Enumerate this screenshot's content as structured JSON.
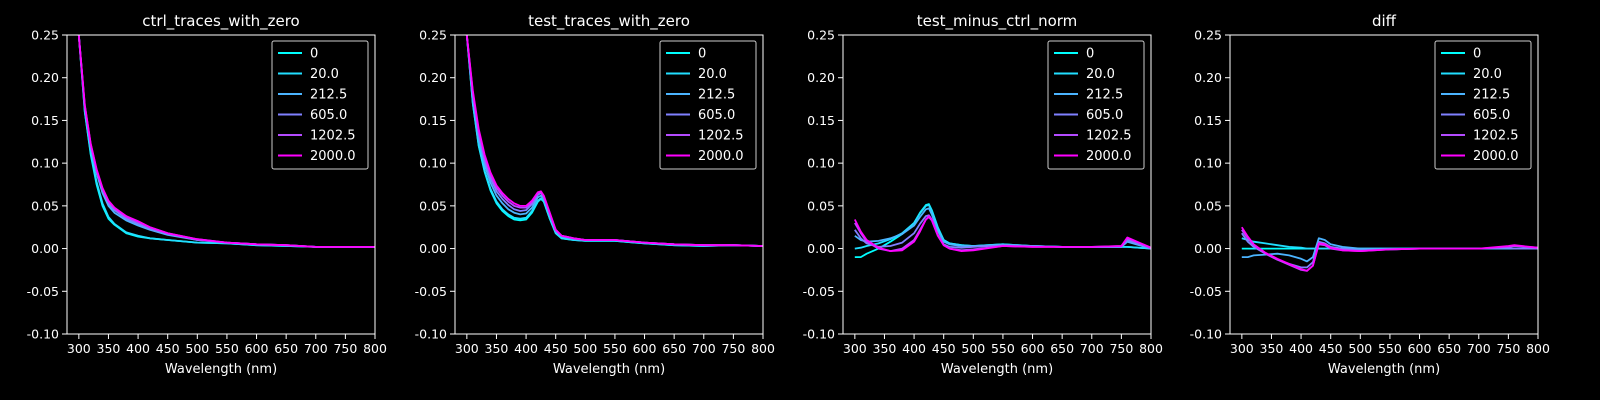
{
  "figure": {
    "background": "#000000",
    "foreground": "#ffffff"
  },
  "series_legend": [
    "0",
    "20.0",
    "212.5",
    "605.0",
    "1202.5",
    "2000.0"
  ],
  "series_colors": [
    "#00ffff",
    "#21deff",
    "#4bb4ff",
    "#7f80ff",
    "#b44bff",
    "#ff00ff"
  ],
  "chart_data": [
    {
      "type": "line",
      "title": "ctrl_traces_with_zero",
      "xlabel": "Wavelength (nm)",
      "ylabel": "",
      "xlim": [
        280,
        800
      ],
      "ylim": [
        -0.1,
        0.25
      ],
      "xticks": [
        300,
        350,
        400,
        450,
        500,
        550,
        600,
        650,
        700,
        750,
        800
      ],
      "yticks": [
        "-0.10",
        "-0.05",
        "0.00",
        "0.05",
        "0.10",
        "0.15",
        "0.20",
        "0.25"
      ],
      "grid": false,
      "legend_position": "top-right",
      "x": [
        300,
        310,
        320,
        330,
        340,
        350,
        360,
        380,
        400,
        420,
        450,
        500,
        550,
        600,
        650,
        700,
        750,
        800
      ],
      "series": [
        {
          "name": "0",
          "values": [
            0.25,
            0.16,
            0.11,
            0.075,
            0.05,
            0.035,
            0.028,
            0.018,
            0.014,
            0.012,
            0.01,
            0.007,
            0.006,
            0.004,
            0.003,
            0.002,
            0.002,
            0.002
          ]
        },
        {
          "name": "20.0",
          "values": [
            0.25,
            0.16,
            0.112,
            0.078,
            0.053,
            0.037,
            0.029,
            0.019,
            0.015,
            0.012,
            0.01,
            0.007,
            0.006,
            0.004,
            0.003,
            0.002,
            0.002,
            0.002
          ]
        },
        {
          "name": "212.5",
          "values": [
            0.25,
            0.165,
            0.118,
            0.088,
            0.065,
            0.05,
            0.042,
            0.033,
            0.027,
            0.022,
            0.016,
            0.01,
            0.007,
            0.005,
            0.004,
            0.002,
            0.002,
            0.002
          ]
        },
        {
          "name": "605.0",
          "values": [
            0.25,
            0.165,
            0.12,
            0.09,
            0.068,
            0.053,
            0.045,
            0.035,
            0.029,
            0.023,
            0.017,
            0.01,
            0.007,
            0.005,
            0.004,
            0.002,
            0.002,
            0.002
          ]
        },
        {
          "name": "1202.5",
          "values": [
            0.25,
            0.168,
            0.122,
            0.092,
            0.07,
            0.055,
            0.047,
            0.037,
            0.031,
            0.025,
            0.018,
            0.011,
            0.007,
            0.005,
            0.004,
            0.002,
            0.002,
            0.002
          ]
        },
        {
          "name": "2000.0",
          "values": [
            0.25,
            0.168,
            0.123,
            0.093,
            0.071,
            0.056,
            0.048,
            0.038,
            0.032,
            0.025,
            0.018,
            0.011,
            0.007,
            0.005,
            0.004,
            0.002,
            0.002,
            0.002
          ]
        }
      ]
    },
    {
      "type": "line",
      "title": "test_traces_with_zero",
      "xlabel": "Wavelength (nm)",
      "ylabel": "",
      "xlim": [
        280,
        800
      ],
      "ylim": [
        -0.1,
        0.25
      ],
      "xticks": [
        300,
        350,
        400,
        450,
        500,
        550,
        600,
        650,
        700,
        750,
        800
      ],
      "yticks": [
        "-0.10",
        "-0.05",
        "0.00",
        "0.05",
        "0.10",
        "0.15",
        "0.20",
        "0.25"
      ],
      "grid": false,
      "legend_position": "top-right",
      "x": [
        300,
        310,
        320,
        330,
        340,
        350,
        360,
        370,
        380,
        390,
        400,
        410,
        420,
        425,
        430,
        440,
        450,
        460,
        480,
        500,
        550,
        600,
        650,
        700,
        750,
        800
      ],
      "series": [
        {
          "name": "0",
          "values": [
            0.25,
            0.17,
            0.12,
            0.09,
            0.068,
            0.053,
            0.044,
            0.038,
            0.034,
            0.033,
            0.034,
            0.042,
            0.055,
            0.058,
            0.055,
            0.035,
            0.018,
            0.012,
            0.01,
            0.009,
            0.009,
            0.006,
            0.004,
            0.003,
            0.004,
            0.003
          ]
        },
        {
          "name": "20.0",
          "values": [
            0.25,
            0.17,
            0.121,
            0.091,
            0.07,
            0.055,
            0.046,
            0.04,
            0.036,
            0.035,
            0.036,
            0.044,
            0.056,
            0.059,
            0.055,
            0.035,
            0.018,
            0.012,
            0.01,
            0.009,
            0.009,
            0.006,
            0.004,
            0.003,
            0.004,
            0.003
          ]
        },
        {
          "name": "212.5",
          "values": [
            0.25,
            0.175,
            0.128,
            0.098,
            0.077,
            0.062,
            0.053,
            0.046,
            0.042,
            0.04,
            0.041,
            0.048,
            0.06,
            0.062,
            0.058,
            0.038,
            0.02,
            0.014,
            0.011,
            0.01,
            0.01,
            0.007,
            0.005,
            0.004,
            0.004,
            0.003
          ]
        },
        {
          "name": "605.0",
          "values": [
            0.25,
            0.18,
            0.133,
            0.103,
            0.082,
            0.067,
            0.058,
            0.051,
            0.046,
            0.044,
            0.045,
            0.052,
            0.063,
            0.065,
            0.06,
            0.04,
            0.021,
            0.015,
            0.012,
            0.01,
            0.01,
            0.007,
            0.005,
            0.004,
            0.004,
            0.003
          ]
        },
        {
          "name": "1202.5",
          "values": [
            0.25,
            0.183,
            0.137,
            0.107,
            0.086,
            0.071,
            0.062,
            0.055,
            0.05,
            0.048,
            0.048,
            0.054,
            0.065,
            0.066,
            0.061,
            0.041,
            0.022,
            0.015,
            0.012,
            0.01,
            0.01,
            0.007,
            0.005,
            0.004,
            0.004,
            0.003
          ]
        },
        {
          "name": "2000.0",
          "values": [
            0.25,
            0.185,
            0.14,
            0.11,
            0.089,
            0.074,
            0.065,
            0.058,
            0.053,
            0.05,
            0.05,
            0.056,
            0.066,
            0.067,
            0.062,
            0.042,
            0.022,
            0.015,
            0.012,
            0.01,
            0.01,
            0.007,
            0.005,
            0.004,
            0.004,
            0.003
          ]
        }
      ]
    },
    {
      "type": "line",
      "title": "test_minus_ctrl_norm",
      "xlabel": "Wavelength (nm)",
      "ylabel": "",
      "xlim": [
        280,
        800
      ],
      "ylim": [
        -0.1,
        0.25
      ],
      "xticks": [
        300,
        350,
        400,
        450,
        500,
        550,
        600,
        650,
        700,
        750,
        800
      ],
      "yticks": [
        "-0.10",
        "-0.05",
        "0.00",
        "0.05",
        "0.10",
        "0.15",
        "0.20",
        "0.25"
      ],
      "grid": false,
      "legend_position": "top-right",
      "x": [
        300,
        310,
        320,
        340,
        360,
        380,
        400,
        410,
        420,
        425,
        430,
        440,
        450,
        460,
        480,
        500,
        550,
        600,
        650,
        700,
        750,
        760,
        800
      ],
      "series": [
        {
          "name": "0",
          "values": [
            -0.01,
            -0.01,
            -0.006,
            0.0,
            0.008,
            0.017,
            0.03,
            0.042,
            0.051,
            0.052,
            0.045,
            0.025,
            0.01,
            0.006,
            0.004,
            0.003,
            0.005,
            0.003,
            0.002,
            0.002,
            0.002,
            0.002,
            0.0
          ]
        },
        {
          "name": "20.0",
          "values": [
            0.0,
            0.001,
            0.003,
            0.006,
            0.011,
            0.018,
            0.03,
            0.041,
            0.05,
            0.051,
            0.044,
            0.024,
            0.01,
            0.006,
            0.004,
            0.003,
            0.005,
            0.003,
            0.002,
            0.002,
            0.002,
            0.002,
            0.0
          ]
        },
        {
          "name": "212.5",
          "values": [
            0.015,
            0.01,
            0.008,
            0.009,
            0.012,
            0.017,
            0.027,
            0.037,
            0.046,
            0.047,
            0.04,
            0.021,
            0.008,
            0.005,
            0.003,
            0.003,
            0.004,
            0.003,
            0.002,
            0.002,
            0.002,
            0.008,
            0.0
          ]
        },
        {
          "name": "605.0",
          "values": [
            0.022,
            0.012,
            0.006,
            0.002,
            0.003,
            0.007,
            0.018,
            0.029,
            0.038,
            0.039,
            0.034,
            0.016,
            0.005,
            0.002,
            0.001,
            0.002,
            0.004,
            0.003,
            0.002,
            0.002,
            0.002,
            0.01,
            0.0
          ]
        },
        {
          "name": "1202.5",
          "values": [
            0.03,
            0.018,
            0.008,
            0.0,
            -0.003,
            0.0,
            0.01,
            0.022,
            0.034,
            0.037,
            0.033,
            0.015,
            0.004,
            0.0,
            -0.002,
            -0.001,
            0.003,
            0.002,
            0.002,
            0.002,
            0.003,
            0.012,
            0.001
          ]
        },
        {
          "name": "2000.0",
          "values": [
            0.034,
            0.02,
            0.01,
            0.001,
            -0.003,
            -0.002,
            0.008,
            0.02,
            0.034,
            0.038,
            0.034,
            0.016,
            0.004,
            0.0,
            -0.003,
            -0.002,
            0.003,
            0.002,
            0.002,
            0.002,
            0.003,
            0.013,
            0.001
          ]
        }
      ]
    },
    {
      "type": "line",
      "title": "diff",
      "xlabel": "Wavelength (nm)",
      "ylabel": "",
      "xlim": [
        280,
        800
      ],
      "ylim": [
        -0.1,
        0.25
      ],
      "xticks": [
        300,
        350,
        400,
        450,
        500,
        550,
        600,
        650,
        700,
        750,
        800
      ],
      "yticks": [
        "-0.10",
        "-0.05",
        "0.00",
        "0.05",
        "0.10",
        "0.15",
        "0.20",
        "0.25"
      ],
      "grid": false,
      "legend_position": "top-right",
      "x": [
        300,
        310,
        320,
        340,
        360,
        380,
        400,
        410,
        420,
        430,
        440,
        450,
        470,
        500,
        550,
        600,
        650,
        700,
        750,
        760,
        800
      ],
      "series": [
        {
          "name": "0",
          "values": [
            0.0,
            0.0,
            0.0,
            0.0,
            0.0,
            0.0,
            0.0,
            0.0,
            0.0,
            0.0,
            0.0,
            0.0,
            0.0,
            0.0,
            0.0,
            0.0,
            0.0,
            0.0,
            0.0,
            0.0,
            0.0
          ]
        },
        {
          "name": "20.0",
          "values": [
            0.012,
            0.01,
            0.008,
            0.006,
            0.004,
            0.002,
            0.001,
            0.0,
            0.0,
            0.0,
            0.0,
            0.0,
            0.0,
            0.0,
            0.0,
            0.0,
            0.0,
            0.0,
            0.0,
            0.0,
            0.0
          ]
        },
        {
          "name": "212.5",
          "values": [
            -0.01,
            -0.01,
            -0.008,
            -0.007,
            -0.006,
            -0.008,
            -0.012,
            -0.015,
            -0.01,
            0.012,
            0.01,
            0.005,
            0.002,
            0.0,
            0.0,
            0.0,
            0.0,
            0.0,
            0.0,
            0.0,
            0.0
          ]
        },
        {
          "name": "605.0",
          "values": [
            0.018,
            0.008,
            0.002,
            -0.006,
            -0.013,
            -0.018,
            -0.022,
            -0.022,
            -0.016,
            0.008,
            0.006,
            0.002,
            0.0,
            -0.002,
            -0.001,
            0.0,
            0.0,
            0.0,
            0.001,
            0.0,
            0.0
          ]
        },
        {
          "name": "1202.5",
          "values": [
            0.022,
            0.012,
            0.004,
            -0.006,
            -0.013,
            -0.019,
            -0.025,
            -0.026,
            -0.02,
            0.005,
            0.004,
            0.0,
            -0.002,
            -0.003,
            -0.001,
            0.0,
            0.0,
            0.0,
            0.002,
            0.003,
            0.001
          ]
        },
        {
          "name": "2000.0",
          "values": [
            0.025,
            0.014,
            0.005,
            -0.005,
            -0.012,
            -0.018,
            -0.024,
            -0.026,
            -0.02,
            0.006,
            0.005,
            0.001,
            -0.002,
            -0.003,
            -0.001,
            0.0,
            0.0,
            0.0,
            0.003,
            0.004,
            0.001
          ]
        }
      ]
    }
  ]
}
